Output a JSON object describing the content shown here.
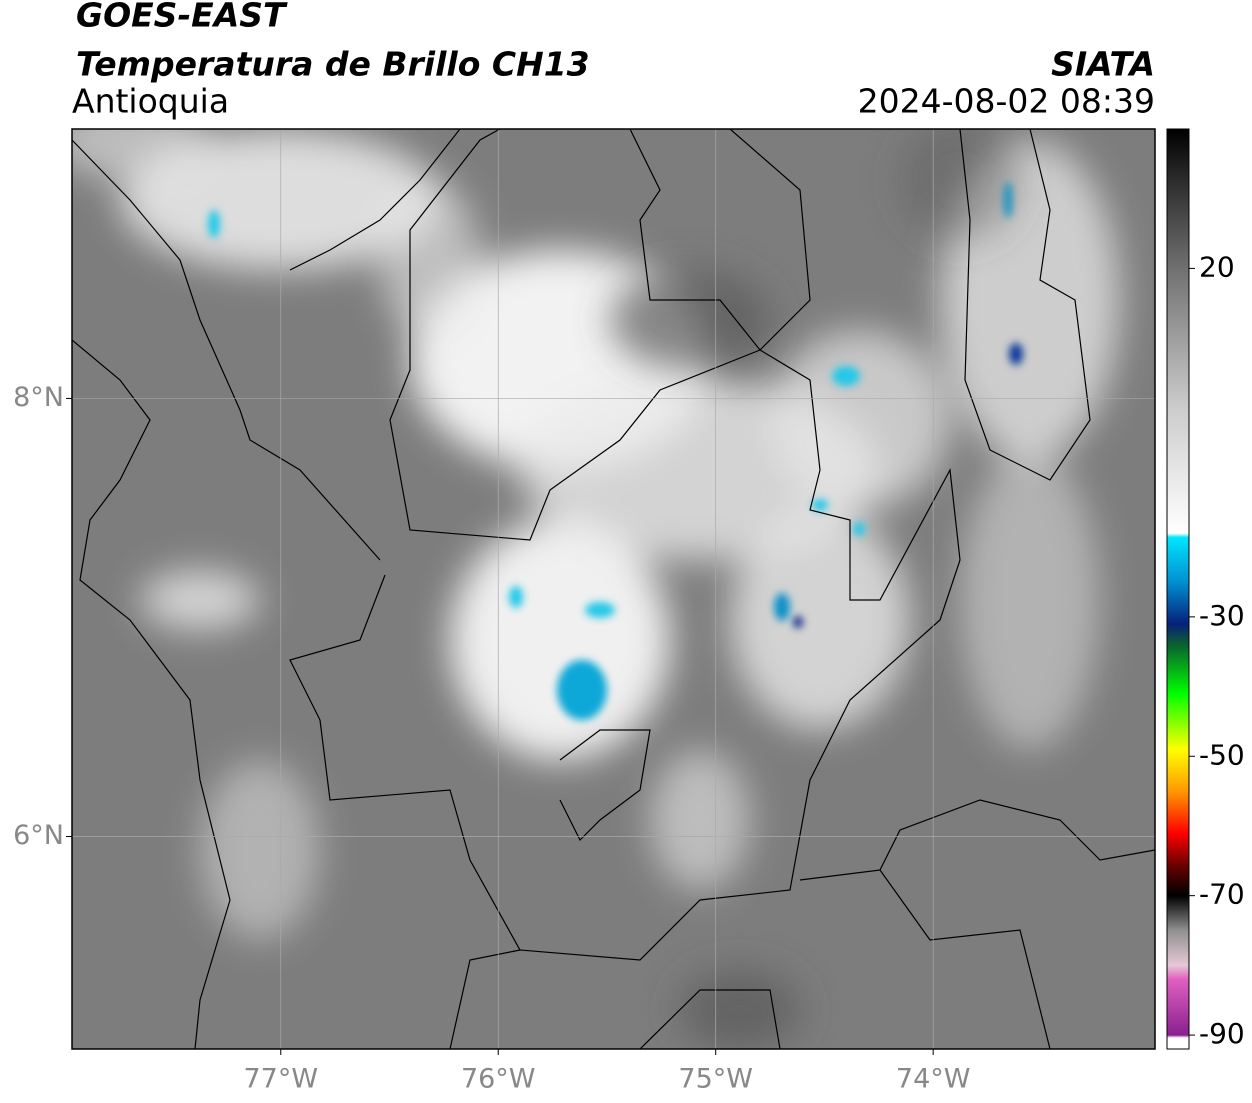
{
  "header": {
    "title": "GOES-EAST",
    "subtitle": "Temperatura de Brillo CH13",
    "region": "Antioquia",
    "source": "SIATA",
    "datetime": "2024-08-02 08:39"
  },
  "map": {
    "lonlim": [
      -77.96,
      -72.98
    ],
    "latlim": [
      5.03,
      9.23
    ],
    "lon_ticks": [
      {
        "value": -77,
        "label": "77°W"
      },
      {
        "value": -76,
        "label": "76°W"
      },
      {
        "value": -75,
        "label": "75°W"
      },
      {
        "value": -74,
        "label": "74°W"
      }
    ],
    "lat_ticks": [
      {
        "value": 8,
        "label": "8°N"
      },
      {
        "value": 6,
        "label": "6°N"
      }
    ],
    "grid": true
  },
  "colorbar": {
    "lim": [
      -92,
      40
    ],
    "ticks": [
      20,
      -30,
      -50,
      -70,
      -90
    ],
    "colors": [
      {
        "value": 40,
        "color": "#000000"
      },
      {
        "value": 33,
        "color": "#2a2a2a"
      },
      {
        "value": 20,
        "color": "#707070"
      },
      {
        "value": 0,
        "color": "#cccccc"
      },
      {
        "value": -18,
        "color": "#ffffff"
      },
      {
        "value": -18.6,
        "color": "#00e5ff"
      },
      {
        "value": -25,
        "color": "#0090d0"
      },
      {
        "value": -31,
        "color": "#08207a"
      },
      {
        "value": -34,
        "color": "#0a6030"
      },
      {
        "value": -41,
        "color": "#00ff00"
      },
      {
        "value": -49,
        "color": "#ffff00"
      },
      {
        "value": -55,
        "color": "#ff9900"
      },
      {
        "value": -61,
        "color": "#ff0000"
      },
      {
        "value": -66,
        "color": "#600000"
      },
      {
        "value": -70,
        "color": "#000000"
      },
      {
        "value": -75,
        "color": "#909090"
      },
      {
        "value": -80,
        "color": "#e6c8d6"
      },
      {
        "value": -82,
        "color": "#e060c0"
      },
      {
        "value": -90,
        "color": "#8a2090"
      },
      {
        "value": -90.4,
        "color": "#ffffff"
      },
      {
        "value": -92,
        "color": "#ffffff"
      }
    ]
  }
}
